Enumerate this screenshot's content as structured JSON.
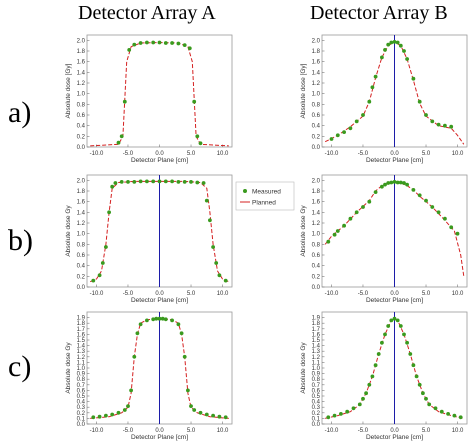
{
  "column_titles": [
    "Detector Array A",
    "Detector Array B"
  ],
  "row_labels": [
    "a)",
    "b)",
    "c)"
  ],
  "legend": {
    "measured": "Measured",
    "planned": "Planned"
  },
  "colors": {
    "measured": "#3a9a1e",
    "planned": "#d42020",
    "center_line": "#1c1ca8",
    "frame": "#999999"
  },
  "chart_data": [
    {
      "type": "line",
      "row": "a",
      "column": "A",
      "xlabel": "Detector Plane [cm]",
      "ylabel": "Absolute dose [Gy]",
      "xlim": [
        -11.5,
        11.5
      ],
      "ylim": [
        0,
        2.1
      ],
      "x_ticks": [
        -10,
        -5,
        0,
        5,
        10
      ],
      "x_tick_labels": [
        "-10.0",
        "-5.0",
        "0.0",
        "5.0",
        "10.0"
      ],
      "y_ticks": [
        0,
        0.2,
        0.4,
        0.6,
        0.8,
        1.0,
        1.2,
        1.4,
        1.6,
        1.8,
        2.0
      ],
      "y_tick_labels": [
        "0.0",
        "0.2",
        "0.4",
        "0.6",
        "0.8",
        "1.0",
        "1.2",
        "1.4",
        "1.6",
        "1.8",
        "2.0"
      ],
      "center_line": false,
      "series": [
        {
          "name": "Planned",
          "style": "dashed",
          "x": [
            -11,
            -6.5,
            -5.8,
            -5.5,
            -5.2,
            -4.5,
            -3,
            0,
            3,
            4.5,
            5.2,
            5.5,
            5.8,
            6.5,
            11
          ],
          "y": [
            0.02,
            0.05,
            0.2,
            0.9,
            1.6,
            1.88,
            1.95,
            1.96,
            1.95,
            1.88,
            1.6,
            0.9,
            0.2,
            0.05,
            0.02
          ]
        },
        {
          "name": "Measured",
          "style": "points",
          "x": [
            -6.5,
            -6.0,
            -5.5,
            -4.8,
            -4.0,
            -3.0,
            -2.0,
            -1.0,
            0,
            1.0,
            2.0,
            3.0,
            4.0,
            4.8,
            5.5,
            6.0,
            6.5
          ],
          "y": [
            0.08,
            0.2,
            0.85,
            1.82,
            1.92,
            1.95,
            1.96,
            1.96,
            1.96,
            1.95,
            1.95,
            1.94,
            1.91,
            1.85,
            0.85,
            0.2,
            0.07
          ]
        }
      ]
    },
    {
      "type": "line",
      "row": "a",
      "column": "B",
      "xlabel": "Detector Plane [cm]",
      "ylabel": "Absolute dose [Gy]",
      "xlim": [
        -11.5,
        11.5
      ],
      "ylim": [
        0,
        2.1
      ],
      "x_ticks": [
        -10,
        -5,
        0,
        5,
        10
      ],
      "x_tick_labels": [
        "-10.0",
        "-5.0",
        "0.0",
        "5.0",
        "10.0"
      ],
      "y_ticks": [
        0,
        0.2,
        0.4,
        0.6,
        0.8,
        1.0,
        1.2,
        1.4,
        1.6,
        1.8,
        2.0
      ],
      "y_tick_labels": [
        "0.0",
        "0.2",
        "0.4",
        "0.6",
        "0.8",
        "1.0",
        "1.2",
        "1.4",
        "1.6",
        "1.8",
        "2.0"
      ],
      "center_line": true,
      "series": [
        {
          "name": "Planned",
          "style": "dashed",
          "x": [
            -11,
            -9,
            -7,
            -5,
            -4,
            -3,
            -2,
            -1,
            0,
            1,
            2,
            3,
            4,
            5,
            7,
            9,
            10,
            11
          ],
          "y": [
            0.1,
            0.22,
            0.38,
            0.58,
            0.85,
            1.3,
            1.68,
            1.9,
            1.97,
            1.9,
            1.65,
            1.25,
            0.82,
            0.58,
            0.4,
            0.35,
            0.22,
            0.05
          ]
        },
        {
          "name": "Measured",
          "style": "points",
          "x": [
            -10,
            -9,
            -8,
            -7,
            -6,
            -5,
            -4,
            -3.5,
            -3,
            -2,
            -1.5,
            -1,
            -0.5,
            0,
            0.5,
            1,
            1.5,
            2,
            3,
            4,
            5,
            6,
            7,
            8,
            9
          ],
          "y": [
            0.15,
            0.22,
            0.28,
            0.35,
            0.48,
            0.6,
            0.85,
            1.12,
            1.32,
            1.68,
            1.82,
            1.92,
            1.96,
            1.97,
            1.96,
            1.9,
            1.8,
            1.65,
            1.28,
            0.85,
            0.6,
            0.48,
            0.42,
            0.4,
            0.38
          ]
        }
      ]
    },
    {
      "type": "line",
      "row": "b",
      "column": "A",
      "xlabel": "Detector Plane [cm]",
      "ylabel": "Absolute dose Gy",
      "xlim": [
        -11.5,
        11.5
      ],
      "ylim": [
        0,
        2.1
      ],
      "x_ticks": [
        -10,
        -5,
        0,
        5,
        10
      ],
      "x_tick_labels": [
        "-10.0",
        "-5.0",
        "0.0",
        "5.0",
        "10.0"
      ],
      "y_ticks": [
        0,
        0.2,
        0.4,
        0.6,
        0.8,
        1.0,
        1.2,
        1.4,
        1.6,
        1.8,
        2.0
      ],
      "y_tick_labels": [
        "0.0",
        "0.2",
        "0.4",
        "0.6",
        "0.8",
        "1.0",
        "1.2",
        "1.4",
        "1.6",
        "1.8",
        "2.0"
      ],
      "center_line": true,
      "series": [
        {
          "name": "Planned",
          "style": "dashed",
          "x": [
            -11,
            -10,
            -9.2,
            -8.5,
            -8,
            -7.5,
            -6.5,
            -4,
            0,
            4,
            6.5,
            7.5,
            8,
            8.5,
            9.2,
            10,
            11
          ],
          "y": [
            0.1,
            0.15,
            0.3,
            0.8,
            1.4,
            1.85,
            1.96,
            1.98,
            1.98,
            1.98,
            1.96,
            1.85,
            1.4,
            0.8,
            0.3,
            0.15,
            0.1
          ]
        },
        {
          "name": "Measured",
          "style": "points",
          "x": [
            -10.5,
            -9.5,
            -9,
            -8.5,
            -8,
            -7.5,
            -7,
            -6,
            -5,
            -4,
            -3,
            -2,
            -1,
            0,
            1,
            2,
            3,
            4,
            5,
            6,
            7,
            7.5,
            8,
            8.5,
            9,
            9.5,
            10.5
          ],
          "y": [
            0.12,
            0.22,
            0.45,
            0.75,
            1.4,
            1.88,
            1.95,
            1.97,
            1.97,
            1.97,
            1.98,
            1.98,
            1.98,
            1.98,
            1.98,
            1.98,
            1.97,
            1.97,
            1.97,
            1.96,
            1.95,
            1.62,
            1.25,
            0.75,
            0.45,
            0.22,
            0.12
          ]
        }
      ]
    },
    {
      "type": "line",
      "row": "b",
      "column": "B",
      "xlabel": "Detector Plane [cm]",
      "ylabel": "Absolute dose Gy",
      "xlim": [
        -11.5,
        11.5
      ],
      "ylim": [
        0,
        2.1
      ],
      "x_ticks": [
        -10,
        -5,
        0,
        5,
        10
      ],
      "x_tick_labels": [
        "-10.0",
        "-5.0",
        "0.0",
        "5.0",
        "10.0"
      ],
      "y_ticks": [
        0,
        0.2,
        0.4,
        0.6,
        0.8,
        1.0,
        1.2,
        1.4,
        1.6,
        1.8,
        2.0
      ],
      "y_tick_labels": [
        "0.0",
        "0.2",
        "0.4",
        "0.6",
        "0.8",
        "1.0",
        "1.2",
        "1.4",
        "1.6",
        "1.8",
        "2.0"
      ],
      "center_line": true,
      "series": [
        {
          "name": "Planned",
          "style": "dashed",
          "x": [
            -11,
            -10,
            -8,
            -6,
            -4,
            -3,
            -2,
            -1,
            0,
            1,
            2,
            3,
            4,
            6,
            8,
            9.5,
            10.5,
            11
          ],
          "y": [
            0.8,
            0.95,
            1.15,
            1.4,
            1.62,
            1.8,
            1.9,
            1.95,
            1.97,
            1.95,
            1.9,
            1.82,
            1.7,
            1.5,
            1.25,
            1.05,
            0.6,
            0.2
          ]
        },
        {
          "name": "Measured",
          "style": "points",
          "x": [
            -10.5,
            -9.5,
            -9,
            -8,
            -7,
            -6,
            -5,
            -4,
            -3,
            -2,
            -1.5,
            -1,
            -0.5,
            0,
            0.5,
            1,
            1.5,
            2,
            3,
            4,
            5,
            6,
            7,
            8,
            9,
            10
          ],
          "y": [
            0.85,
            0.98,
            1.05,
            1.15,
            1.28,
            1.4,
            1.5,
            1.6,
            1.78,
            1.88,
            1.92,
            1.95,
            1.96,
            1.97,
            1.96,
            1.96,
            1.95,
            1.92,
            1.82,
            1.72,
            1.62,
            1.5,
            1.4,
            1.28,
            1.12,
            1.0
          ]
        }
      ]
    },
    {
      "type": "line",
      "row": "c",
      "column": "A",
      "xlabel": "Detector Plane [cm]",
      "ylabel": "Absolute dose Gy",
      "xlim": [
        -11.5,
        11.5
      ],
      "ylim": [
        0,
        2.0
      ],
      "x_ticks": [
        -10,
        -5,
        0,
        5,
        10
      ],
      "x_tick_labels": [
        "-10.0",
        "-5.0",
        "0.0",
        "5.0",
        "10.0"
      ],
      "y_ticks": [
        0,
        0.1,
        0.2,
        0.3,
        0.4,
        0.5,
        0.6,
        0.7,
        0.8,
        0.9,
        1.0,
        1.1,
        1.2,
        1.3,
        1.4,
        1.5,
        1.6,
        1.7,
        1.8,
        1.9
      ],
      "y_tick_labels": [
        "0.0",
        "0.1",
        "0.2",
        "0.3",
        "0.4",
        "0.5",
        "0.6",
        "0.7",
        "0.8",
        "0.9",
        "1.0",
        "1.1",
        "1.2",
        "1.3",
        "1.4",
        "1.5",
        "1.6",
        "1.7",
        "1.8",
        "1.9"
      ],
      "center_line": true,
      "series": [
        {
          "name": "Planned",
          "style": "dashed",
          "x": [
            -11,
            -8,
            -6,
            -5,
            -4.5,
            -4,
            -3.5,
            -3,
            -2,
            0,
            2,
            3,
            3.5,
            4,
            4.5,
            5,
            6,
            8,
            11
          ],
          "y": [
            0.1,
            0.13,
            0.2,
            0.3,
            0.55,
            1.2,
            1.6,
            1.8,
            1.86,
            1.88,
            1.86,
            1.8,
            1.6,
            1.2,
            0.55,
            0.3,
            0.2,
            0.13,
            0.1
          ]
        },
        {
          "name": "Measured",
          "style": "points",
          "x": [
            -10.5,
            -9.5,
            -8.5,
            -7.5,
            -6.5,
            -5.5,
            -5,
            -4.5,
            -4,
            -3.5,
            -3,
            -2,
            -1,
            -0.5,
            0,
            0.5,
            1,
            2,
            3,
            3.5,
            4,
            4.5,
            5,
            5.5,
            6.5,
            7.5,
            8.5,
            9.5,
            10.5
          ],
          "y": [
            0.12,
            0.13,
            0.15,
            0.17,
            0.2,
            0.25,
            0.32,
            0.6,
            1.2,
            1.62,
            1.78,
            1.85,
            1.87,
            1.88,
            1.88,
            1.88,
            1.87,
            1.85,
            1.78,
            1.62,
            1.2,
            0.6,
            0.32,
            0.25,
            0.2,
            0.17,
            0.15,
            0.13,
            0.12
          ]
        }
      ]
    },
    {
      "type": "line",
      "row": "c",
      "column": "B",
      "xlabel": "Detector Plane [cm]",
      "ylabel": "Absolute dose Gy",
      "xlim": [
        -11.5,
        11.5
      ],
      "ylim": [
        0,
        2.0
      ],
      "x_ticks": [
        -10,
        -5,
        0,
        5,
        10
      ],
      "x_tick_labels": [
        "-10.0",
        "-5.0",
        "0.0",
        "5.0",
        "10.0"
      ],
      "y_ticks": [
        0,
        0.1,
        0.2,
        0.3,
        0.4,
        0.5,
        0.6,
        0.7,
        0.8,
        0.9,
        1.0,
        1.1,
        1.2,
        1.3,
        1.4,
        1.5,
        1.6,
        1.7,
        1.8,
        1.9
      ],
      "y_tick_labels": [
        "0.0",
        "0.1",
        "0.2",
        "0.3",
        "0.4",
        "0.5",
        "0.6",
        "0.7",
        "0.8",
        "0.9",
        "1.0",
        "1.1",
        "1.2",
        "1.3",
        "1.4",
        "1.5",
        "1.6",
        "1.7",
        "1.8",
        "1.9"
      ],
      "center_line": true,
      "series": [
        {
          "name": "Planned",
          "style": "dashed",
          "x": [
            -11,
            -9,
            -7,
            -5.5,
            -4.5,
            -3.5,
            -2.5,
            -1.5,
            -0.5,
            0,
            0.5,
            1.5,
            2.5,
            3.5,
            4.5,
            5.5,
            7,
            9,
            11
          ],
          "y": [
            0.1,
            0.15,
            0.22,
            0.35,
            0.55,
            0.85,
            1.25,
            1.6,
            1.85,
            1.88,
            1.85,
            1.6,
            1.25,
            0.85,
            0.55,
            0.35,
            0.22,
            0.15,
            0.1
          ]
        },
        {
          "name": "Measured",
          "style": "points",
          "x": [
            -10.5,
            -9.5,
            -8.5,
            -7.5,
            -6.5,
            -5.5,
            -5,
            -4.5,
            -4,
            -3.5,
            -3,
            -2.5,
            -2,
            -1.5,
            -1,
            -0.5,
            0,
            0.5,
            1,
            1.5,
            2,
            2.5,
            3,
            3.5,
            4,
            4.5,
            5,
            5.5,
            6.5,
            7.5,
            8.5,
            9.5,
            10.5
          ],
          "y": [
            0.12,
            0.15,
            0.18,
            0.22,
            0.28,
            0.35,
            0.45,
            0.55,
            0.7,
            0.85,
            1.05,
            1.25,
            1.45,
            1.6,
            1.75,
            1.85,
            1.88,
            1.85,
            1.75,
            1.6,
            1.45,
            1.25,
            1.05,
            0.85,
            0.7,
            0.55,
            0.45,
            0.35,
            0.28,
            0.22,
            0.18,
            0.15,
            0.12
          ]
        }
      ]
    }
  ]
}
